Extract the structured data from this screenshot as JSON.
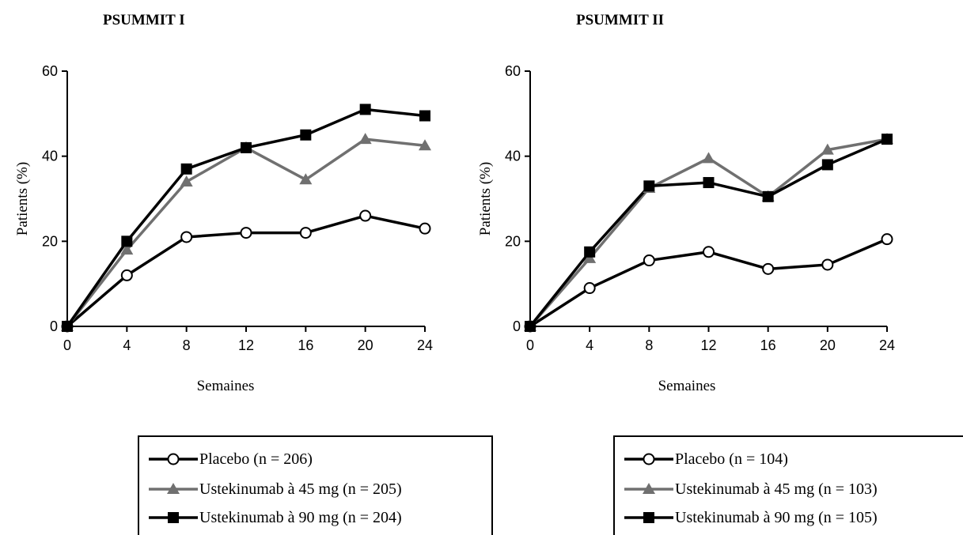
{
  "chart_data": [
    {
      "type": "line",
      "title": "PSUMMIT I",
      "xlabel": "Semaines",
      "ylabel": "Patients (%)",
      "x": [
        0,
        4,
        8,
        12,
        16,
        20,
        24
      ],
      "xticks": [
        "0",
        "4",
        "8",
        "12",
        "16",
        "20",
        "24"
      ],
      "yticks": [
        "0",
        "20",
        "40",
        "60"
      ],
      "xlim": [
        0,
        24
      ],
      "ylim": [
        0,
        60
      ],
      "grid": false,
      "legend_position": "bottom",
      "series": [
        {
          "name": "Placebo",
          "n_label": "(n = 206)",
          "marker": "circle",
          "color": "#000000",
          "values": [
            0,
            12,
            21,
            22,
            22,
            26,
            23
          ]
        },
        {
          "name": "Ustekinumab à 45 mg",
          "n_label": "(n = 205)",
          "marker": "triangle",
          "color": "#707070",
          "values": [
            0,
            18,
            34,
            42,
            34.5,
            44,
            42.5
          ]
        },
        {
          "name": "Ustekinumab à 90 mg",
          "n_label": "(n = 204)",
          "marker": "square",
          "color": "#000000",
          "values": [
            0,
            20,
            37,
            42,
            45,
            51,
            49.5
          ]
        }
      ]
    },
    {
      "type": "line",
      "title": "PSUMMIT II",
      "xlabel": "Semaines",
      "ylabel": "Patients (%)",
      "x": [
        0,
        4,
        8,
        12,
        16,
        20,
        24
      ],
      "xticks": [
        "0",
        "4",
        "8",
        "12",
        "16",
        "20",
        "24"
      ],
      "yticks": [
        "0",
        "20",
        "40",
        "60"
      ],
      "xlim": [
        0,
        24
      ],
      "ylim": [
        0,
        60
      ],
      "grid": false,
      "legend_position": "bottom",
      "series": [
        {
          "name": "Placebo",
          "n_label": "(n = 104)",
          "marker": "circle",
          "color": "#000000",
          "values": [
            0,
            9,
            15.5,
            17.5,
            13.5,
            14.5,
            20.5
          ]
        },
        {
          "name": "Ustekinumab à 45 mg",
          "n_label": "(n = 103)",
          "marker": "triangle",
          "color": "#707070",
          "values": [
            0,
            16,
            32.5,
            39.5,
            30.5,
            41.5,
            44
          ]
        },
        {
          "name": "Ustekinumab à 90 mg",
          "n_label": "(n = 105)",
          "marker": "square",
          "color": "#000000",
          "values": [
            0,
            17.5,
            33,
            33.8,
            30.5,
            38,
            44
          ]
        }
      ]
    }
  ],
  "legends": [
    {
      "rows": [
        "Placebo (n = 206)",
        "Ustekinumab à 45 mg (n = 205)",
        "Ustekinumab à 90 mg (n = 204)"
      ]
    },
    {
      "rows": [
        "Placebo (n = 104)",
        "Ustekinumab à 45 mg (n = 103)",
        "Ustekinumab à 90 mg (n = 105)"
      ]
    }
  ]
}
